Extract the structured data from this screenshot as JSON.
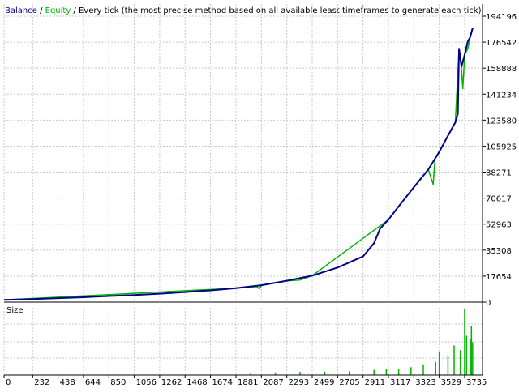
{
  "header": {
    "balance_label": "Balance",
    "separator": " / ",
    "equity_label": "Equity",
    "description": " / Every tick (the most precise method based on all available least timeframes to generate each tick)"
  },
  "colors": {
    "balance": "#00008b",
    "equity": "#00b400",
    "size_bars": "#00b400",
    "grid": "#c8c8c8",
    "axis_text": "#000000",
    "background": "#ffffff"
  },
  "chart_data": [
    {
      "type": "line",
      "title": "Balance / Equity",
      "xlabel": "",
      "ylabel": "",
      "xlim": [
        0,
        3880
      ],
      "ylim": [
        0,
        194196
      ],
      "grid": true,
      "legend": "top-left",
      "y_ticks": [
        0,
        17654,
        35308,
        52963,
        70617,
        88271,
        105925,
        123580,
        141234,
        158888,
        176542,
        194196
      ],
      "x_ticks": [
        0,
        232,
        438,
        644,
        850,
        1056,
        1262,
        1468,
        1674,
        1881,
        2087,
        2293,
        2499,
        2705,
        2911,
        3117,
        3323,
        3529,
        3735
      ],
      "series": [
        {
          "name": "Balance",
          "points": [
            [
              0,
              1500
            ],
            [
              232,
              2100
            ],
            [
              438,
              2700
            ],
            [
              644,
              3300
            ],
            [
              850,
              4100
            ],
            [
              1056,
              4800
            ],
            [
              1262,
              5700
            ],
            [
              1468,
              6800
            ],
            [
              1674,
              8000
            ],
            [
              1881,
              9500
            ],
            [
              2087,
              11500
            ],
            [
              2293,
              14500
            ],
            [
              2499,
              18000
            ],
            [
              2705,
              23500
            ],
            [
              2911,
              31000
            ],
            [
              3000,
              40000
            ],
            [
              3050,
              50000
            ],
            [
              3117,
              56000
            ],
            [
              3200,
              65000
            ],
            [
              3323,
              78000
            ],
            [
              3440,
              90000
            ],
            [
              3529,
              102000
            ],
            [
              3600,
              113000
            ],
            [
              3660,
              122000
            ],
            [
              3680,
              128000
            ],
            [
              3685,
              150000
            ],
            [
              3690,
              172000
            ],
            [
              3710,
              160000
            ],
            [
              3735,
              168000
            ],
            [
              3760,
              177000
            ],
            [
              3780,
              180000
            ],
            [
              3800,
              186000
            ]
          ]
        },
        {
          "name": "Equity",
          "points": [
            [
              0,
              1500
            ],
            [
              1881,
              9500
            ],
            [
              2050,
              10500
            ],
            [
              2070,
              9000
            ],
            [
              2087,
              11500
            ],
            [
              2293,
              14500
            ],
            [
              2400,
              15000
            ],
            [
              2499,
              18000
            ],
            [
              3117,
              56000
            ],
            [
              3323,
              78000
            ],
            [
              3440,
              90000
            ],
            [
              3480,
              80000
            ],
            [
              3495,
              98000
            ],
            [
              3529,
              102000
            ],
            [
              3660,
              122000
            ],
            [
              3690,
              172000
            ],
            [
              3705,
              164000
            ],
            [
              3720,
              145000
            ],
            [
              3735,
              168000
            ],
            [
              3760,
              172000
            ],
            [
              3780,
              180000
            ],
            [
              3800,
              186000
            ]
          ]
        }
      ]
    },
    {
      "type": "bar",
      "title": "Size",
      "xlim": [
        0,
        3880
      ],
      "ylim": [
        0,
        100
      ],
      "grid": true,
      "series": [
        {
          "points": [
            [
              2000,
              3
            ],
            [
              2200,
              4
            ],
            [
              2400,
              5
            ],
            [
              2600,
              5
            ],
            [
              2800,
              6
            ],
            [
              3000,
              8
            ],
            [
              3100,
              9
            ],
            [
              3200,
              10
            ],
            [
              3300,
              12
            ],
            [
              3400,
              15
            ],
            [
              3500,
              20
            ],
            [
              3529,
              35
            ],
            [
              3600,
              30
            ],
            [
              3650,
              45
            ],
            [
              3700,
              38
            ],
            [
              3735,
              100
            ],
            [
              3750,
              60
            ],
            [
              3780,
              55
            ],
            [
              3790,
              75
            ],
            [
              3800,
              50
            ]
          ]
        }
      ]
    }
  ]
}
